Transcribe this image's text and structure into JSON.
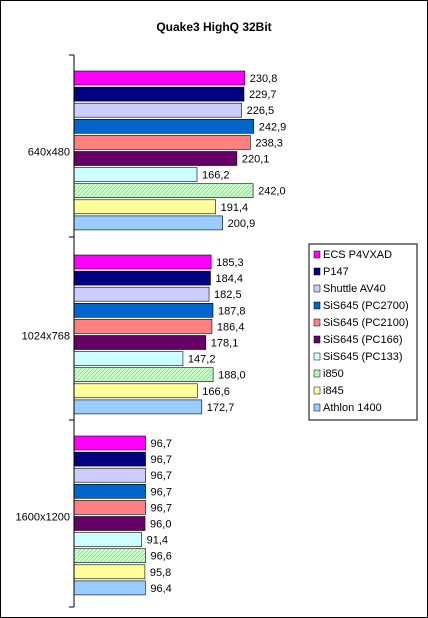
{
  "chart_data": {
    "type": "bar",
    "orientation": "horizontal",
    "title": "Quake3 HighQ 32Bit",
    "categories": [
      "640x480",
      "1024x768",
      "1600x1200"
    ],
    "series": [
      {
        "name": "ECS P4VXAD",
        "values": [
          230.8,
          185.3,
          96.7
        ],
        "value_labels": [
          "230,8",
          "185,3",
          "96,7"
        ],
        "color": "#ff00ff",
        "pattern": "solid"
      },
      {
        "name": "P147",
        "values": [
          229.7,
          184.4,
          96.7
        ],
        "value_labels": [
          "229,7",
          "184,4",
          "96,7"
        ],
        "color": "#000080",
        "pattern": "solid"
      },
      {
        "name": "Shuttle AV40",
        "values": [
          226.5,
          182.5,
          96.7
        ],
        "value_labels": [
          "226,5",
          "182,5",
          "96,7"
        ],
        "color": "#ccccff",
        "pattern": "solid"
      },
      {
        "name": "SiS645 (PC2700)",
        "values": [
          242.9,
          187.8,
          96.7
        ],
        "value_labels": [
          "242,9",
          "187,8",
          "96,7"
        ],
        "color": "#0066cc",
        "pattern": "solid"
      },
      {
        "name": "SiS645 (PC2100)",
        "values": [
          238.3,
          186.4,
          96.7
        ],
        "value_labels": [
          "238,3",
          "186,4",
          "96,7"
        ],
        "color": "#ff8080",
        "pattern": "solid"
      },
      {
        "name": "SiS645 (PC166)",
        "values": [
          220.1,
          178.1,
          96.0
        ],
        "value_labels": [
          "220,1",
          "178,1",
          "96,0"
        ],
        "color": "#660066",
        "pattern": "solid"
      },
      {
        "name": "SiS645 (PC133)",
        "values": [
          166.2,
          147.2,
          91.4
        ],
        "value_labels": [
          "166,2",
          "147,2",
          "91,4"
        ],
        "color": "#ccffff",
        "pattern": "solid"
      },
      {
        "name": "i850",
        "values": [
          242.0,
          188.0,
          96.6
        ],
        "value_labels": [
          "242,0",
          "188,0",
          "96,6"
        ],
        "color": "#ccffcc",
        "pattern": "hatch"
      },
      {
        "name": "i845",
        "values": [
          191.4,
          166.6,
          95.8
        ],
        "value_labels": [
          "191,4",
          "166,6",
          "95,8"
        ],
        "color": "#ffff99",
        "pattern": "solid"
      },
      {
        "name": "Athlon 1400",
        "values": [
          200.9,
          172.7,
          96.4
        ],
        "value_labels": [
          "200,9",
          "172,7",
          "96,4"
        ],
        "color": "#99ccff",
        "pattern": "solid"
      }
    ],
    "xlim": [
      0,
      500
    ],
    "grid": false,
    "legend_position": "right"
  }
}
